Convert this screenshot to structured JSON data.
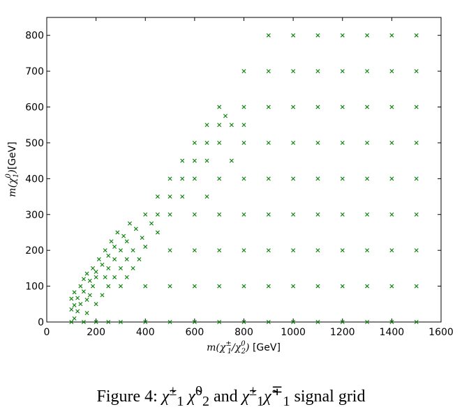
{
  "chart_data": {
    "type": "scatter",
    "marker": "x",
    "marker_color": "#008000",
    "xlim": [
      0,
      1600
    ],
    "ylim": [
      0,
      850
    ],
    "x_ticks": [
      0,
      200,
      400,
      600,
      800,
      1000,
      1200,
      1400,
      1600
    ],
    "y_ticks": [
      0,
      100,
      200,
      300,
      400,
      500,
      600,
      700,
      800
    ],
    "xlabel": {
      "math_pre": "m(χ",
      "sup1": "±",
      "sub1": "1",
      "math_mid": "/χ",
      "sup2": "0",
      "sub2": "2",
      "math_post": ")",
      "unit": " [GeV]"
    },
    "ylabel": {
      "math_pre": "m(χ",
      "sup1": "0",
      "sub1": "1",
      "math_post": ")",
      "unit": "[GeV]"
    },
    "grid": false,
    "points": [
      [
        100,
        0
      ],
      [
        100,
        35
      ],
      [
        100,
        65
      ],
      [
        112,
        10
      ],
      [
        112,
        47
      ],
      [
        112,
        83
      ],
      [
        125,
        30
      ],
      [
        125,
        67
      ],
      [
        137,
        50
      ],
      [
        137,
        100
      ],
      [
        150,
        0
      ],
      [
        150,
        85
      ],
      [
        150,
        120
      ],
      [
        163,
        25
      ],
      [
        163,
        62
      ],
      [
        163,
        135
      ],
      [
        175,
        75
      ],
      [
        175,
        115
      ],
      [
        187,
        100
      ],
      [
        187,
        150
      ],
      [
        200,
        0
      ],
      [
        200,
        50
      ],
      [
        200,
        125
      ],
      [
        200,
        140
      ],
      [
        212,
        175
      ],
      [
        225,
        75
      ],
      [
        225,
        160
      ],
      [
        237,
        125
      ],
      [
        237,
        200
      ],
      [
        250,
        0
      ],
      [
        250,
        100
      ],
      [
        250,
        150
      ],
      [
        250,
        185
      ],
      [
        262,
        225
      ],
      [
        275,
        125
      ],
      [
        275,
        175
      ],
      [
        275,
        210
      ],
      [
        287,
        250
      ],
      [
        300,
        0
      ],
      [
        300,
        100
      ],
      [
        300,
        150
      ],
      [
        300,
        200
      ],
      [
        312,
        240
      ],
      [
        325,
        125
      ],
      [
        325,
        175
      ],
      [
        325,
        225
      ],
      [
        337,
        275
      ],
      [
        350,
        150
      ],
      [
        350,
        200
      ],
      [
        362,
        260
      ],
      [
        375,
        175
      ],
      [
        387,
        235
      ],
      [
        400,
        0
      ],
      [
        400,
        100
      ],
      [
        400,
        210
      ],
      [
        400,
        300
      ],
      [
        425,
        275
      ],
      [
        450,
        250
      ],
      [
        450,
        300
      ],
      [
        450,
        350
      ],
      [
        500,
        0
      ],
      [
        500,
        100
      ],
      [
        500,
        200
      ],
      [
        500,
        300
      ],
      [
        500,
        350
      ],
      [
        500,
        400
      ],
      [
        550,
        350
      ],
      [
        550,
        400
      ],
      [
        550,
        450
      ],
      [
        600,
        0
      ],
      [
        600,
        100
      ],
      [
        600,
        200
      ],
      [
        600,
        300
      ],
      [
        600,
        400
      ],
      [
        600,
        450
      ],
      [
        600,
        500
      ],
      [
        650,
        350
      ],
      [
        650,
        450
      ],
      [
        650,
        500
      ],
      [
        650,
        550
      ],
      [
        700,
        0
      ],
      [
        700,
        100
      ],
      [
        700,
        200
      ],
      [
        700,
        300
      ],
      [
        700,
        400
      ],
      [
        700,
        500
      ],
      [
        700,
        550
      ],
      [
        700,
        600
      ],
      [
        725,
        575
      ],
      [
        750,
        450
      ],
      [
        750,
        550
      ],
      [
        800,
        0
      ],
      [
        800,
        100
      ],
      [
        800,
        200
      ],
      [
        800,
        300
      ],
      [
        800,
        400
      ],
      [
        800,
        500
      ],
      [
        800,
        550
      ],
      [
        800,
        600
      ],
      [
        800,
        700
      ],
      [
        900,
        0
      ],
      [
        900,
        100
      ],
      [
        900,
        200
      ],
      [
        900,
        300
      ],
      [
        900,
        400
      ],
      [
        900,
        500
      ],
      [
        900,
        600
      ],
      [
        900,
        700
      ],
      [
        900,
        800
      ],
      [
        1000,
        0
      ],
      [
        1000,
        100
      ],
      [
        1000,
        200
      ],
      [
        1000,
        300
      ],
      [
        1000,
        400
      ],
      [
        1000,
        500
      ],
      [
        1000,
        600
      ],
      [
        1000,
        700
      ],
      [
        1000,
        800
      ],
      [
        1100,
        0
      ],
      [
        1100,
        100
      ],
      [
        1100,
        200
      ],
      [
        1100,
        300
      ],
      [
        1100,
        400
      ],
      [
        1100,
        500
      ],
      [
        1100,
        600
      ],
      [
        1100,
        700
      ],
      [
        1100,
        800
      ],
      [
        1200,
        0
      ],
      [
        1200,
        100
      ],
      [
        1200,
        200
      ],
      [
        1200,
        300
      ],
      [
        1200,
        400
      ],
      [
        1200,
        500
      ],
      [
        1200,
        600
      ],
      [
        1200,
        700
      ],
      [
        1200,
        800
      ],
      [
        1300,
        0
      ],
      [
        1300,
        100
      ],
      [
        1300,
        200
      ],
      [
        1300,
        300
      ],
      [
        1300,
        400
      ],
      [
        1300,
        500
      ],
      [
        1300,
        600
      ],
      [
        1300,
        700
      ],
      [
        1300,
        800
      ],
      [
        1400,
        0
      ],
      [
        1400,
        100
      ],
      [
        1400,
        200
      ],
      [
        1400,
        300
      ],
      [
        1400,
        400
      ],
      [
        1400,
        500
      ],
      [
        1400,
        600
      ],
      [
        1400,
        700
      ],
      [
        1400,
        800
      ],
      [
        1500,
        0
      ],
      [
        1500,
        100
      ],
      [
        1500,
        200
      ],
      [
        1500,
        300
      ],
      [
        1500,
        400
      ],
      [
        1500,
        500
      ],
      [
        1500,
        600
      ],
      [
        1500,
        700
      ],
      [
        1500,
        800
      ]
    ]
  },
  "caption": {
    "prefix": "Figure 4: ",
    "chi": "χ̃",
    "pm": "±",
    "mp": "∓",
    "zero": "0",
    "one": "1",
    "two": "2",
    "and": " and ",
    "suffix": " signal grid"
  }
}
